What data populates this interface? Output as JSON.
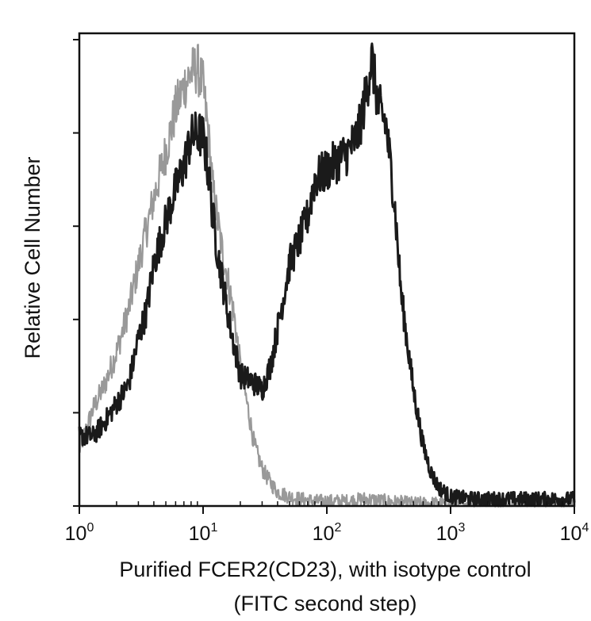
{
  "chart_data": {
    "type": "line",
    "title": "",
    "xlabel_line1": "Purified FCER2(CD23), with isotype control",
    "xlabel_line2": "(FITC second step)",
    "ylabel": "Relative Cell Number",
    "x_scale": "log",
    "xlim": [
      1,
      10000
    ],
    "ylim": [
      0,
      100
    ],
    "grid": false,
    "legend": "none",
    "x_ticks": [
      {
        "base": "10",
        "exp": "0",
        "value": 1
      },
      {
        "base": "10",
        "exp": "1",
        "value": 10
      },
      {
        "base": "10",
        "exp": "2",
        "value": 100
      },
      {
        "base": "10",
        "exp": "3",
        "value": 1000
      },
      {
        "base": "10",
        "exp": "4",
        "value": 10000
      }
    ],
    "y_ticks": [
      0,
      20,
      40,
      60,
      80,
      100
    ],
    "series": [
      {
        "color": "#999999",
        "x": [
          1,
          1.3,
          1.6,
          2.0,
          2.5,
          3.2,
          4.0,
          5.0,
          6.0,
          7.0,
          8.0,
          9.0,
          10,
          11,
          12,
          14,
          16,
          18,
          20,
          23,
          26,
          30,
          35,
          40,
          50,
          60,
          80,
          100,
          150,
          200,
          300,
          500,
          1000,
          3000,
          10000
        ],
        "y": [
          12,
          21,
          26,
          33,
          42,
          55,
          66,
          76,
          85,
          90,
          93,
          94,
          90,
          80,
          68,
          56,
          48,
          40,
          30,
          21,
          13,
          8,
          5,
          3,
          2,
          1.5,
          1,
          1,
          1,
          1.5,
          1,
          0.5,
          0.5,
          0.5,
          0.5
        ]
      },
      {
        "color": "#1a1a1a",
        "x": [
          1,
          1.3,
          1.6,
          2.0,
          2.5,
          3.0,
          3.5,
          4.0,
          5.0,
          6.0,
          7.0,
          8.0,
          9.0,
          10,
          11,
          12,
          13,
          15,
          17,
          20,
          24,
          30,
          35,
          40,
          50,
          60,
          70,
          80,
          100,
          120,
          150,
          180,
          200,
          230,
          260,
          300,
          350,
          400,
          500,
          600,
          700,
          800,
          1000,
          1500,
          3000,
          10000
        ],
        "y": [
          15,
          15,
          18,
          22,
          26,
          36,
          42,
          52,
          61,
          68,
          73,
          79,
          80,
          79,
          72,
          62,
          55,
          45,
          37,
          28,
          27,
          25,
          30,
          38,
          52,
          57,
          62,
          70,
          72,
          74,
          76,
          80,
          86,
          96,
          86,
          82,
          66,
          45,
          25,
          13,
          7,
          4,
          2,
          1.5,
          1.5,
          1.5
        ]
      }
    ]
  }
}
